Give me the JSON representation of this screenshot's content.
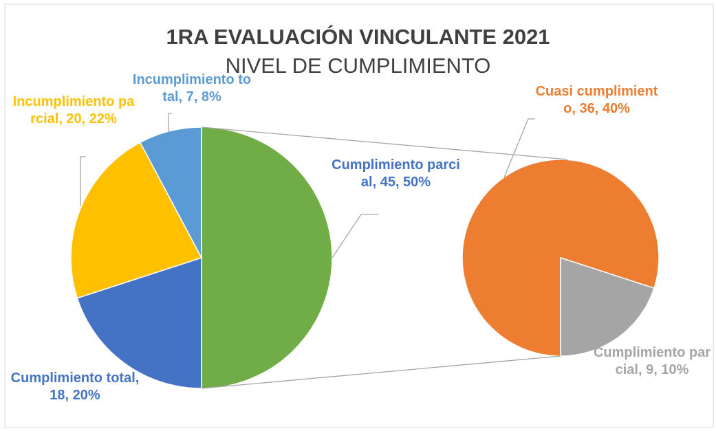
{
  "chart_data": {
    "type": "pie-of-pie",
    "title": "1RA EVALUACIÓN VINCULANTE 2021",
    "subtitle": "NIVEL DE CUMPLIMIENTO",
    "primary": {
      "categories": [
        "Cumplimiento parcial",
        "Cumplimiento total",
        "Incumplimiento parcial",
        "Incumplimiento total"
      ],
      "values": [
        45,
        18,
        20,
        7
      ],
      "colors": [
        "#70ad47",
        "#4472c4",
        "#ffc000",
        "#5b9bd5"
      ],
      "label_colors": [
        "#4472c4",
        "#4472c4",
        "#ffc000",
        "#5b9bd5"
      ],
      "value_labels": [
        "Cumplimiento parcial, 45, 50%",
        "Cumplimiento total, 18, 20%",
        "Incumplimiento parcial, 20, 22%",
        "Incumplimiento total, 7, 8%"
      ]
    },
    "secondary": {
      "categories": [
        "Cuasi cumplimiento",
        "Cumplimiento parcial"
      ],
      "values": [
        36,
        9
      ],
      "colors": [
        "#ed7d31",
        "#a5a5a5"
      ],
      "label_colors": [
        "#ed7d31",
        "#a5a5a5"
      ],
      "value_labels": [
        "Cuasi cumplimiento, 36, 40%",
        "Cumplimiento parcial, 9, 10%"
      ]
    }
  }
}
